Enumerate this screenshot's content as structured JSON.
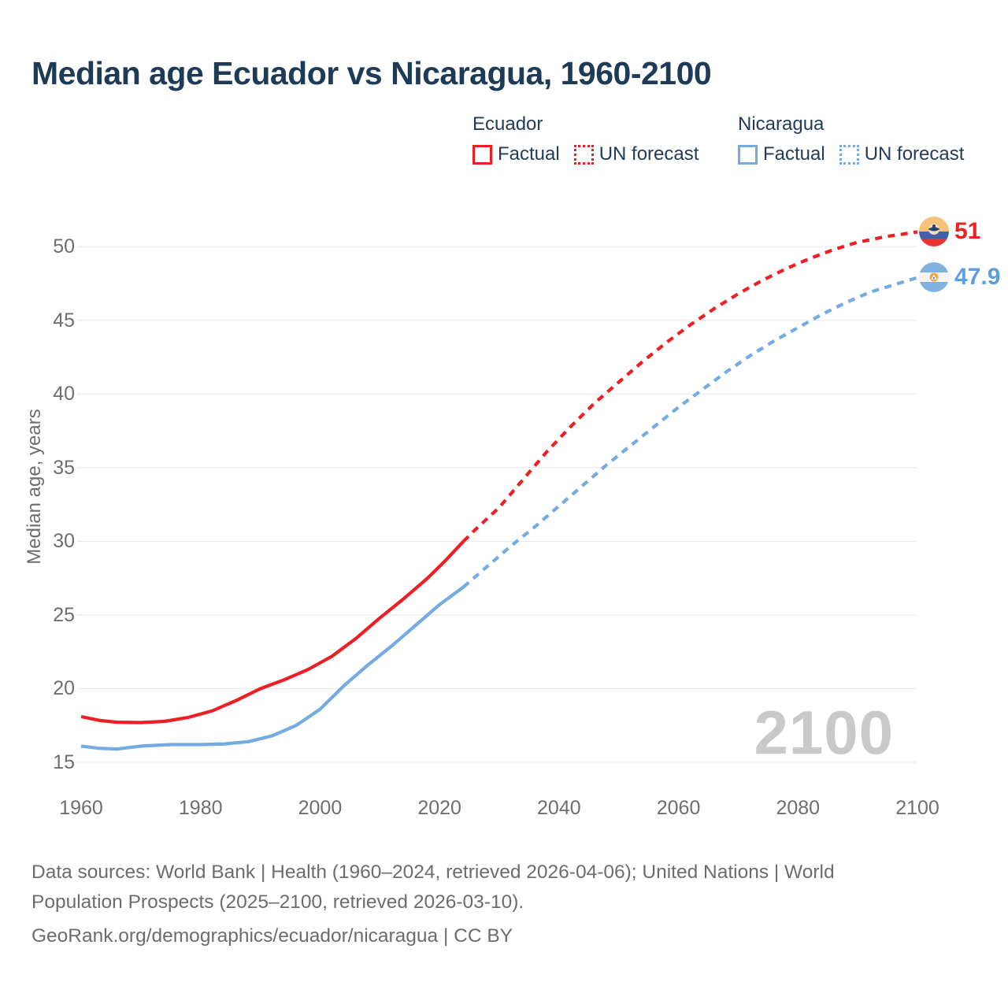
{
  "title": "Median age Ecuador vs Nicaragua, 1960-2100",
  "legend": {
    "groups": [
      {
        "country": "Ecuador",
        "color": "#ed1f24",
        "items": [
          {
            "label": "Factual",
            "style": "solid"
          },
          {
            "label": "UN forecast",
            "style": "dotted"
          }
        ]
      },
      {
        "country": "Nicaragua",
        "color": "#73abe2",
        "items": [
          {
            "label": "Factual",
            "style": "solid"
          },
          {
            "label": "UN forecast",
            "style": "dotted"
          }
        ]
      }
    ]
  },
  "watermark": "2100",
  "footer": {
    "lines": [
      "Data sources: World Bank | Health (1960–2024, retrieved 2026-04-06); United Nations | World",
      "Population Prospects (2025–2100, retrieved 2026-03-10).",
      "GeoRank.org/demographics/ecuador/nicaragua | CC BY"
    ]
  },
  "chart_data": {
    "type": "line",
    "title": "Median age Ecuador vs Nicaragua, 1960-2100",
    "xlabel": "",
    "ylabel": "Median age, years",
    "xlim": [
      1960,
      2100
    ],
    "ylim": [
      15,
      50
    ],
    "x_ticks": [
      1960,
      1980,
      2000,
      2020,
      2040,
      2060,
      2080,
      2100
    ],
    "y_ticks": [
      15,
      20,
      25,
      30,
      35,
      40,
      45,
      50
    ],
    "grid": "horizontal",
    "legend_position": "top",
    "series": [
      {
        "name": "Ecuador factual",
        "color": "#ed1f24",
        "style": "solid",
        "points": [
          [
            1960,
            18.1
          ],
          [
            1963,
            17.85
          ],
          [
            1966,
            17.72
          ],
          [
            1970,
            17.7
          ],
          [
            1974,
            17.78
          ],
          [
            1978,
            18.05
          ],
          [
            1982,
            18.5
          ],
          [
            1986,
            19.2
          ],
          [
            1990,
            20.0
          ],
          [
            1994,
            20.6
          ],
          [
            1998,
            21.3
          ],
          [
            2002,
            22.2
          ],
          [
            2006,
            23.4
          ],
          [
            2010,
            24.8
          ],
          [
            2014,
            26.1
          ],
          [
            2018,
            27.5
          ],
          [
            2021,
            28.7
          ],
          [
            2024,
            30.0
          ]
        ]
      },
      {
        "name": "Ecuador UN forecast",
        "color": "#ed1f24",
        "style": "dashed",
        "points": [
          [
            2024,
            30.0
          ],
          [
            2026,
            30.8
          ],
          [
            2030,
            32.3
          ],
          [
            2034,
            34.2
          ],
          [
            2038,
            36.1
          ],
          [
            2042,
            37.8
          ],
          [
            2046,
            39.4
          ],
          [
            2050,
            40.8
          ],
          [
            2054,
            42.2
          ],
          [
            2058,
            43.5
          ],
          [
            2062,
            44.7
          ],
          [
            2066,
            45.8
          ],
          [
            2070,
            46.8
          ],
          [
            2074,
            47.7
          ],
          [
            2078,
            48.5
          ],
          [
            2082,
            49.2
          ],
          [
            2086,
            49.8
          ],
          [
            2090,
            50.3
          ],
          [
            2095,
            50.7
          ],
          [
            2100,
            51.0
          ]
        ]
      },
      {
        "name": "Nicaragua factual",
        "color": "#73abe2",
        "style": "solid",
        "points": [
          [
            1960,
            16.1
          ],
          [
            1963,
            15.95
          ],
          [
            1966,
            15.9
          ],
          [
            1970,
            16.1
          ],
          [
            1975,
            16.2
          ],
          [
            1980,
            16.2
          ],
          [
            1984,
            16.25
          ],
          [
            1988,
            16.4
          ],
          [
            1992,
            16.8
          ],
          [
            1996,
            17.5
          ],
          [
            2000,
            18.6
          ],
          [
            2004,
            20.2
          ],
          [
            2008,
            21.6
          ],
          [
            2012,
            22.9
          ],
          [
            2016,
            24.3
          ],
          [
            2020,
            25.7
          ],
          [
            2024,
            26.9
          ]
        ]
      },
      {
        "name": "Nicaragua UN forecast",
        "color": "#73abe2",
        "style": "dashed",
        "points": [
          [
            2024,
            26.9
          ],
          [
            2028,
            28.3
          ],
          [
            2032,
            29.7
          ],
          [
            2036,
            31.0
          ],
          [
            2040,
            32.4
          ],
          [
            2044,
            33.8
          ],
          [
            2048,
            35.2
          ],
          [
            2052,
            36.5
          ],
          [
            2056,
            37.8
          ],
          [
            2060,
            39.1
          ],
          [
            2064,
            40.3
          ],
          [
            2068,
            41.5
          ],
          [
            2072,
            42.6
          ],
          [
            2076,
            43.6
          ],
          [
            2080,
            44.5
          ],
          [
            2084,
            45.4
          ],
          [
            2088,
            46.2
          ],
          [
            2092,
            46.9
          ],
          [
            2096,
            47.4
          ],
          [
            2100,
            47.9
          ]
        ]
      }
    ],
    "end_labels": [
      {
        "name": "Ecuador",
        "value": 51,
        "label": "51",
        "color": "#ed1f24"
      },
      {
        "name": "Nicaragua",
        "value": 47.9,
        "label": "47.9",
        "color": "#5b9fde"
      }
    ]
  }
}
